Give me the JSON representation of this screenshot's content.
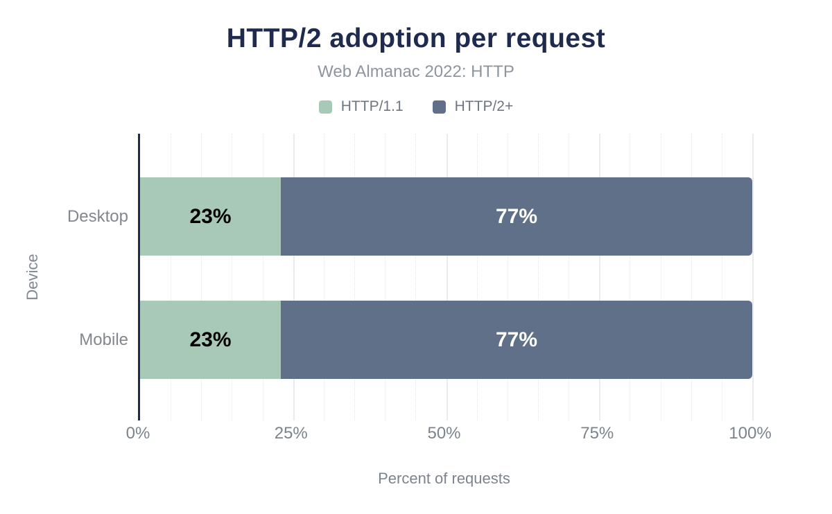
{
  "chart_data": {
    "type": "bar",
    "orientation": "horizontal",
    "stacked": true,
    "title": "HTTP/2 adoption per request",
    "subtitle": "Web Almanac 2022: HTTP",
    "categories": [
      "Desktop",
      "Mobile"
    ],
    "series": [
      {
        "name": "HTTP/1.1",
        "color": "#a9c9b8",
        "label_color": "#000000",
        "values": [
          23,
          23
        ]
      },
      {
        "name": "HTTP/2+",
        "color": "#607089",
        "label_color": "#ffffff",
        "values": [
          77,
          77
        ]
      }
    ],
    "value_suffix": "%",
    "xlabel": "Percent of requests",
    "ylabel": "Device",
    "xlim": [
      0,
      100
    ],
    "xticks": [
      0,
      25,
      50,
      75,
      100
    ],
    "xtick_labels": [
      "0%",
      "25%",
      "50%",
      "75%",
      "100%"
    ],
    "grid": {
      "major_every": 25,
      "minor_every": 5,
      "minor_style": "dotted"
    },
    "legend_position": "top",
    "colors": {
      "axis_line": "#1e2b4e",
      "title_text": "#1e2b4e",
      "subtitle_text": "#8f959d",
      "tick_text": "#7b838d",
      "category_text": "#81878f"
    }
  }
}
